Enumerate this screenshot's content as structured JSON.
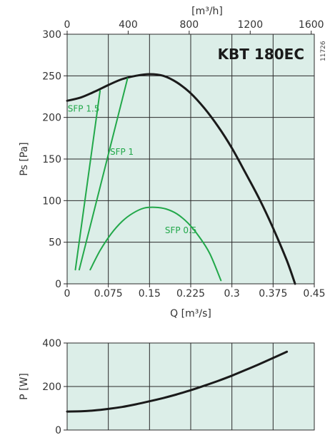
{
  "colors": {
    "panel_background": "#dceee8",
    "fan_curve": "#1a1a1a",
    "sfp_lines": "#22a84a",
    "grid": "#2a2a2a"
  },
  "chart_data": [
    {
      "type": "line",
      "title": "KBT 180EC",
      "code": "11726",
      "xlabel": "Q [m³/s]",
      "ylabel": "Ps [Pa]",
      "x2label": "[m³/h]",
      "xlim": [
        0,
        0.45
      ],
      "ylim": [
        0,
        300
      ],
      "x2lim": [
        0,
        1620
      ],
      "x_ticks": [
        "0",
        "0.075",
        "0.15",
        "0.225",
        "0.3",
        "0.375",
        "0.45"
      ],
      "x_tick_values": [
        0,
        0.075,
        0.15,
        0.225,
        0.3,
        0.375,
        0.45
      ],
      "x2_ticks": [
        "0",
        "400",
        "800",
        "1200",
        "1600"
      ],
      "x2_tick_values": [
        0,
        400,
        800,
        1200,
        1600
      ],
      "y_ticks": [
        "0",
        "50",
        "100",
        "150",
        "200",
        "250",
        "300"
      ],
      "y_tick_values": [
        0,
        50,
        100,
        150,
        200,
        250,
        300
      ],
      "grid": true,
      "series": [
        {
          "role": "fan-curve",
          "points": [
            [
              0,
              220
            ],
            [
              0.025,
              224
            ],
            [
              0.05,
              231
            ],
            [
              0.075,
              239
            ],
            [
              0.1,
              246
            ],
            [
              0.125,
              250
            ],
            [
              0.15,
              252
            ],
            [
              0.175,
              250
            ],
            [
              0.2,
              242
            ],
            [
              0.225,
              229
            ],
            [
              0.25,
              211
            ],
            [
              0.275,
              189
            ],
            [
              0.3,
              163
            ],
            [
              0.325,
              133
            ],
            [
              0.35,
              102
            ],
            [
              0.375,
              67
            ],
            [
              0.4,
              28
            ],
            [
              0.415,
              0
            ]
          ]
        },
        {
          "name": "SFP 1.5",
          "role": "sfp-line",
          "points": [
            [
              0.015,
              17
            ],
            [
              0.06,
              232
            ]
          ]
        },
        {
          "name": "SFP 1",
          "role": "sfp-line",
          "points": [
            [
              0.022,
              17
            ],
            [
              0.11,
              247
            ]
          ]
        },
        {
          "name": "SFP 0.5",
          "role": "sfp-curve",
          "points": [
            [
              0.042,
              17
            ],
            [
              0.06,
              40
            ],
            [
              0.08,
              60
            ],
            [
              0.1,
              75
            ],
            [
              0.12,
              85
            ],
            [
              0.14,
              91
            ],
            [
              0.16,
              92
            ],
            [
              0.18,
              90
            ],
            [
              0.2,
              84
            ],
            [
              0.22,
              73
            ],
            [
              0.24,
              57
            ],
            [
              0.26,
              36
            ],
            [
              0.28,
              4
            ]
          ]
        }
      ]
    },
    {
      "type": "line",
      "xlim": [
        0,
        0.45
      ],
      "ylim": [
        0,
        400
      ],
      "ylabel": "P [W]",
      "y_ticks": [
        "0",
        "200",
        "400"
      ],
      "y_tick_values": [
        0,
        200,
        400
      ],
      "grid": true,
      "series": [
        {
          "role": "power-curve",
          "points": [
            [
              0,
              85
            ],
            [
              0.025,
              86
            ],
            [
              0.05,
              90
            ],
            [
              0.075,
              97
            ],
            [
              0.1,
              106
            ],
            [
              0.125,
              118
            ],
            [
              0.15,
              132
            ],
            [
              0.175,
              147
            ],
            [
              0.2,
              164
            ],
            [
              0.225,
              183
            ],
            [
              0.25,
              204
            ],
            [
              0.275,
              226
            ],
            [
              0.3,
              250
            ],
            [
              0.325,
              276
            ],
            [
              0.35,
              303
            ],
            [
              0.375,
              331
            ],
            [
              0.4,
              360
            ]
          ]
        }
      ]
    }
  ]
}
